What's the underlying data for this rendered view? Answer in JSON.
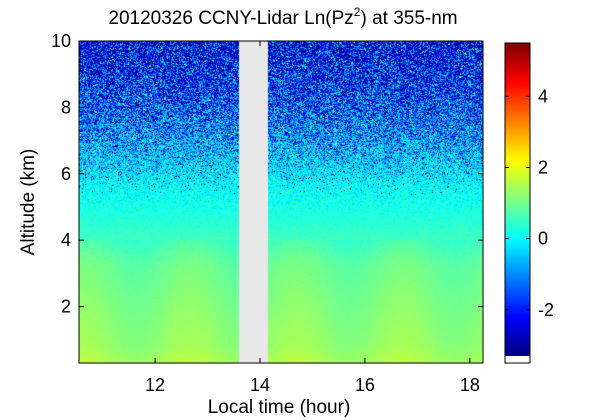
{
  "chart_data": {
    "type": "heatmap",
    "title": {
      "prefix": "20120326 CCNY-Lidar Ln(Pz",
      "superscript": "2",
      "suffix": ") at 355-nm"
    },
    "xlabel": "Local time (hour)",
    "ylabel": "Altitude (km)",
    "xlim": [
      10.55,
      18.25
    ],
    "ylim": [
      0.3,
      10
    ],
    "x_ticks": [
      12,
      14,
      16,
      18
    ],
    "y_ticks": [
      2,
      4,
      6,
      8,
      10
    ],
    "data_gap": [
      13.6,
      14.15
    ],
    "colorbar": {
      "range": [
        -3.3,
        5.5
      ],
      "ticks": [
        -2,
        0,
        2,
        4
      ],
      "tick_labels": [
        "-2",
        "0",
        "2",
        "4"
      ],
      "colormap": "jet"
    },
    "profile": {
      "altitude_km": [
        0.3,
        0.8,
        1.5,
        2.5,
        3.3,
        4.0,
        4.8,
        5.5,
        6.2,
        7.0,
        8.0,
        9.0,
        10.0
      ],
      "value": [
        1.5,
        1.3,
        1.2,
        1.05,
        0.9,
        0.55,
        0.25,
        0.05,
        -0.3,
        -0.7,
        -1.1,
        -1.4,
        -1.5
      ],
      "noise": [
        0.1,
        0.1,
        0.1,
        0.12,
        0.15,
        0.2,
        0.3,
        0.6,
        1.0,
        1.45,
        1.7,
        1.9,
        2.0
      ]
    },
    "grid": false
  }
}
